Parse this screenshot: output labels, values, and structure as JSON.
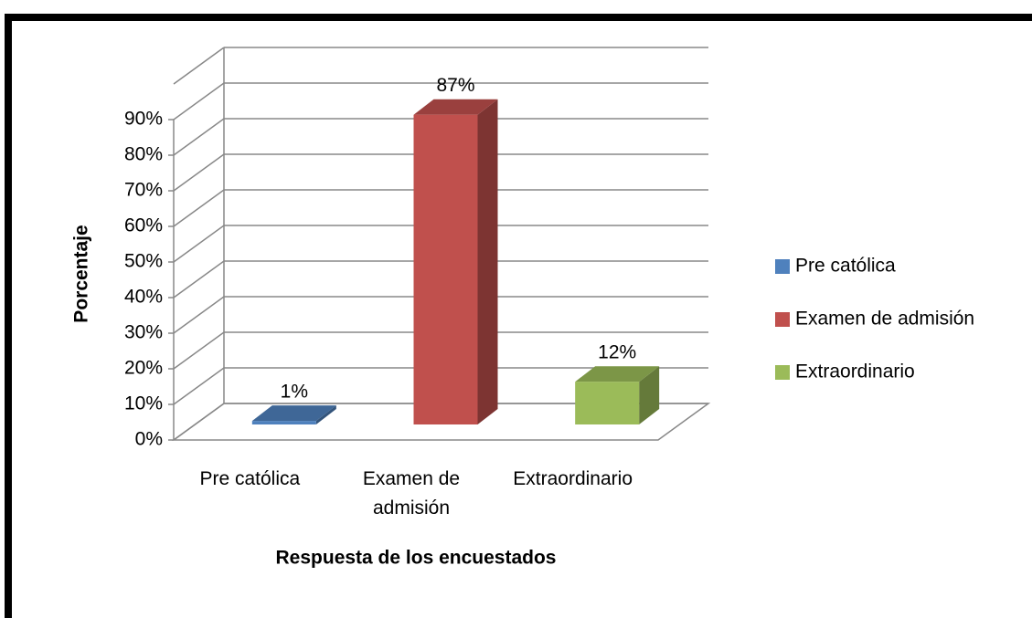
{
  "chart_data": {
    "type": "bar3d",
    "categories": [
      "Pre católica",
      "Examen de admisión",
      "Extraordinario"
    ],
    "values": [
      1,
      87,
      12
    ],
    "value_labels": [
      "1%",
      "87%",
      "12%"
    ],
    "colors": [
      "#4f81bd",
      "#c0504d",
      "#9bbb59"
    ],
    "x_label": "Respuesta de los encuestados",
    "y_label": "Porcentaje",
    "ylim": [
      0,
      100
    ],
    "yticks": [
      {
        "value": 0,
        "label": "0%"
      },
      {
        "value": 10,
        "label": "10%"
      },
      {
        "value": 20,
        "label": "20%"
      },
      {
        "value": 30,
        "label": "30%"
      },
      {
        "value": 40,
        "label": "40%"
      },
      {
        "value": 50,
        "label": "50%"
      },
      {
        "value": 60,
        "label": "60%"
      },
      {
        "value": 70,
        "label": "70%"
      },
      {
        "value": 80,
        "label": "80%"
      },
      {
        "value": 90,
        "label": "90%"
      }
    ],
    "grid": true,
    "legend": "right"
  }
}
